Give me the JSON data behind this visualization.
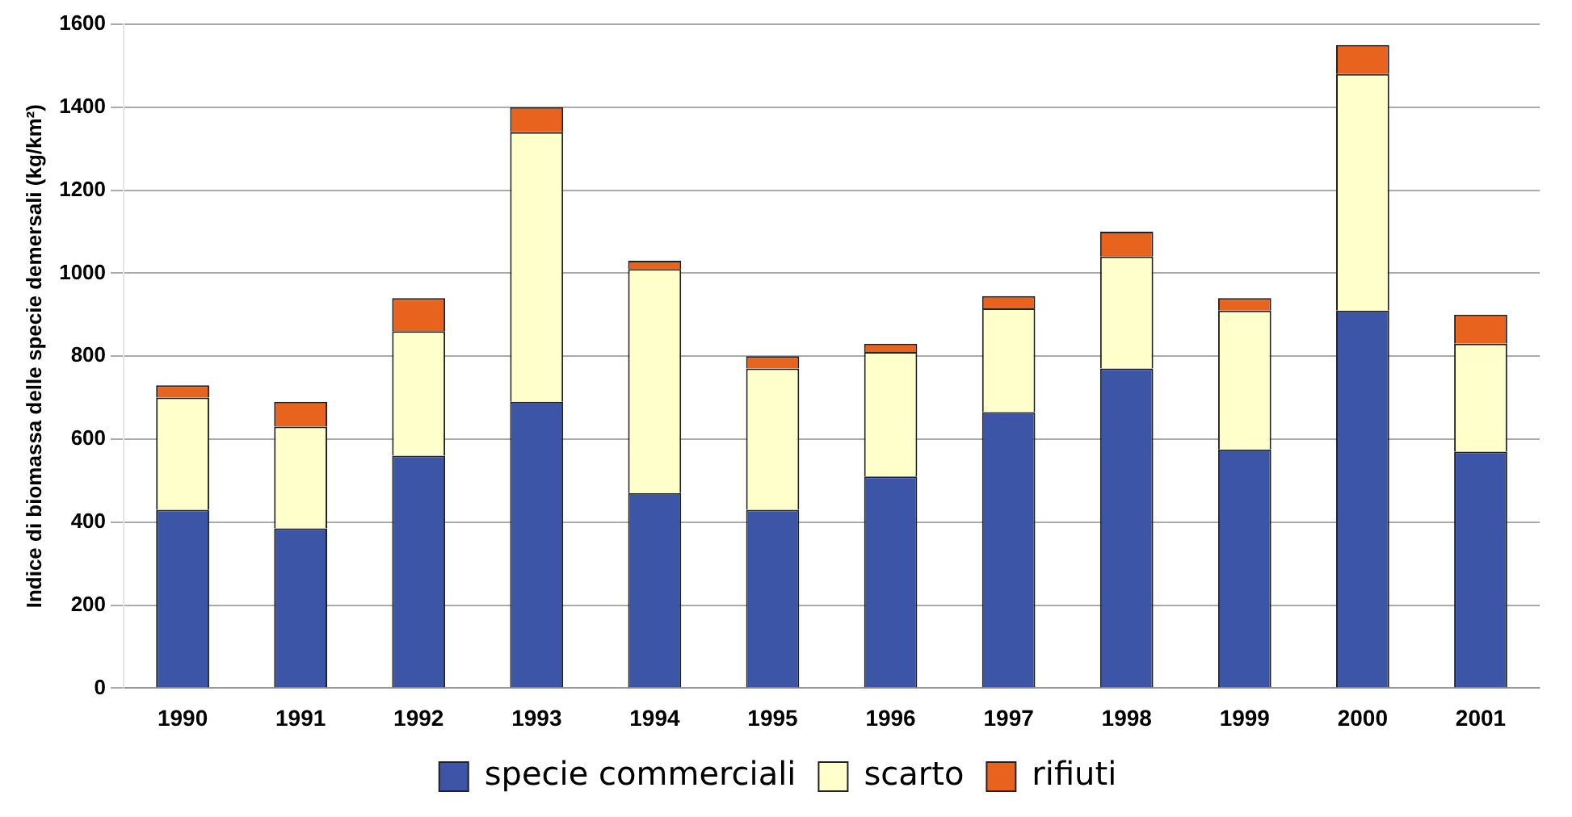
{
  "chart_data": {
    "type": "bar",
    "stacked": true,
    "ylabel": "Indice di biomassa delle specie demersali (kg/km²)",
    "categories": [
      "1990",
      "1991",
      "1992",
      "1993",
      "1994",
      "1995",
      "1996",
      "1997",
      "1998",
      "1999",
      "2000",
      "2001"
    ],
    "series": [
      {
        "name": "specie commerciali",
        "color": "#3d55a6",
        "values": [
          430,
          385,
          560,
          690,
          470,
          430,
          510,
          665,
          770,
          575,
          910,
          570
        ]
      },
      {
        "name": "scarto",
        "color": "#ffffcc",
        "values": [
          270,
          245,
          300,
          650,
          540,
          340,
          300,
          250,
          270,
          335,
          570,
          260
        ]
      },
      {
        "name": "rifiuti",
        "color": "#e8641e",
        "values": [
          30,
          60,
          80,
          60,
          20,
          30,
          20,
          30,
          60,
          30,
          70,
          70
        ]
      }
    ],
    "ylim": [
      0,
      1600
    ],
    "yticks": [
      0,
      200,
      400,
      600,
      800,
      1000,
      1200,
      1400,
      1600
    ],
    "grid": "y",
    "legend": "bottom"
  }
}
